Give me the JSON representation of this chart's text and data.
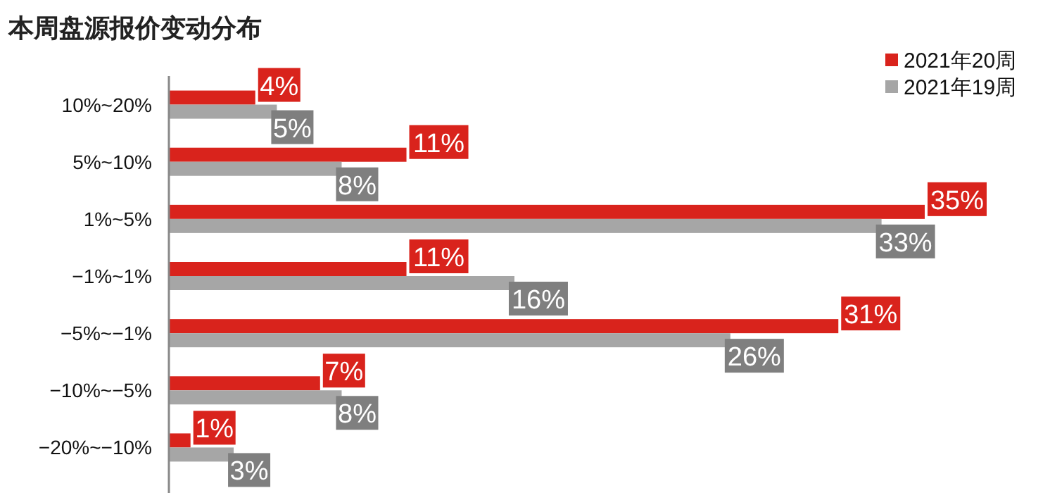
{
  "chart_data": {
    "type": "bar",
    "orientation": "horizontal",
    "title": "本周盘源报价变动分布",
    "categories": [
      "10%~20%",
      "5%~10%",
      "1%~5%",
      "−1%~1%",
      "−5%~−1%",
      "−10%~−5%",
      "−20%~−10%"
    ],
    "series": [
      {
        "name": "2021年20周",
        "color": "#d9231c",
        "values": [
          4,
          11,
          35,
          11,
          31,
          7,
          1
        ],
        "value_labels": [
          "4%",
          "11%",
          "35%",
          "11%",
          "31%",
          "7%",
          "1%"
        ]
      },
      {
        "name": "2021年19周",
        "color": "#a6a6a6",
        "values": [
          5,
          8,
          33,
          16,
          26,
          8,
          3
        ],
        "value_labels": [
          "5%",
          "8%",
          "33%",
          "16%",
          "26%",
          "8%",
          "3%"
        ]
      }
    ],
    "legend": "top right"
  }
}
